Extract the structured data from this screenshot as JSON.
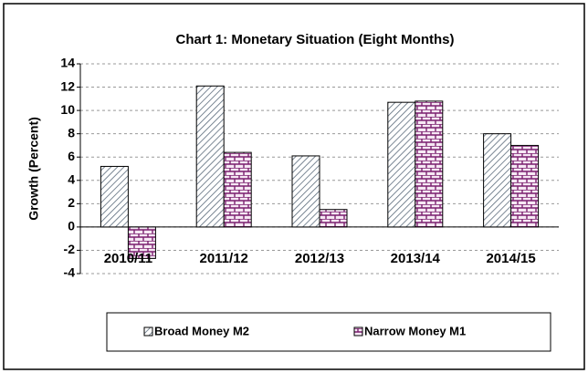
{
  "chart_data": {
    "type": "bar",
    "title": "Chart 1:  Monetary Situation (Eight Months)",
    "y_label": "Growth (Percent)",
    "categories": [
      "2010/11",
      "2011/12",
      "2012/13",
      "2013/14",
      "2014/15"
    ],
    "series": [
      {
        "name": "Broad Money M2",
        "color": "#c8d4e0",
        "values": [
          5.2,
          12.1,
          6.1,
          10.7,
          8.0
        ]
      },
      {
        "name": "Narrow Money M1",
        "color": "#7a1f6e",
        "values": [
          -2.7,
          6.4,
          1.5,
          10.8,
          7.0
        ]
      }
    ],
    "ylim": [
      -4,
      14
    ],
    "yticks": [
      -4,
      -2,
      0,
      2,
      4,
      6,
      8,
      10,
      12,
      14
    ],
    "grid": true,
    "legend": "bottom"
  }
}
